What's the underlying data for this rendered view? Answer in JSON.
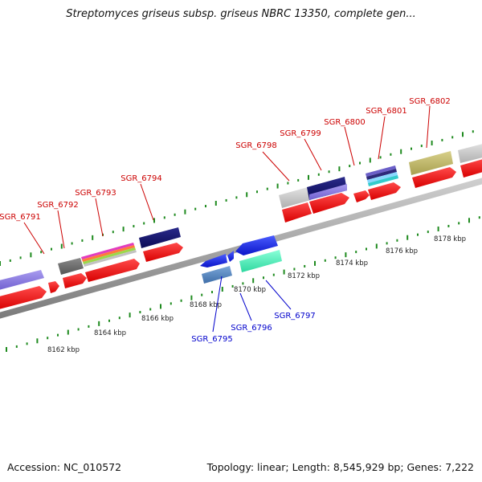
{
  "title": "Streptomyces griseus subsp. griseus NBRC 13350, complete gen...",
  "accession_label": "Accession: NC_010572",
  "topology_label": "Topology: linear; Length: 8,545,929 bp; Genes: 7,222",
  "axis": {
    "ticks": [
      {
        "label": "8162 kbp"
      },
      {
        "label": "8164 kbp"
      },
      {
        "label": "8166 kbp"
      },
      {
        "label": "8168 kbp"
      },
      {
        "label": "8170 kbp"
      },
      {
        "label": "8172 kbp"
      },
      {
        "label": "8174 kbp"
      },
      {
        "label": "8176 kbp"
      },
      {
        "label": "8178 kbp"
      }
    ]
  },
  "genes": [
    {
      "id": "SGR_6791",
      "strand": "plus",
      "color": "#cc0000"
    },
    {
      "id": "SGR_6792",
      "strand": "plus",
      "color": "#cc0000"
    },
    {
      "id": "SGR_6793",
      "strand": "plus",
      "color": "#cc0000"
    },
    {
      "id": "SGR_6794",
      "strand": "plus",
      "color": "#cc0000"
    },
    {
      "id": "SGR_6795",
      "strand": "minus",
      "color": "#0000cc"
    },
    {
      "id": "SGR_6796",
      "strand": "minus",
      "color": "#0000cc"
    },
    {
      "id": "SGR_6797",
      "strand": "minus",
      "color": "#0000cc"
    },
    {
      "id": "SGR_6798",
      "strand": "plus",
      "color": "#cc0000"
    },
    {
      "id": "SGR_6799",
      "strand": "plus",
      "color": "#cc0000"
    },
    {
      "id": "SGR_6800",
      "strand": "plus",
      "color": "#cc0000"
    },
    {
      "id": "SGR_6801",
      "strand": "plus",
      "color": "#cc0000"
    },
    {
      "id": "SGR_6802",
      "strand": "plus",
      "color": "#cc0000"
    }
  ]
}
